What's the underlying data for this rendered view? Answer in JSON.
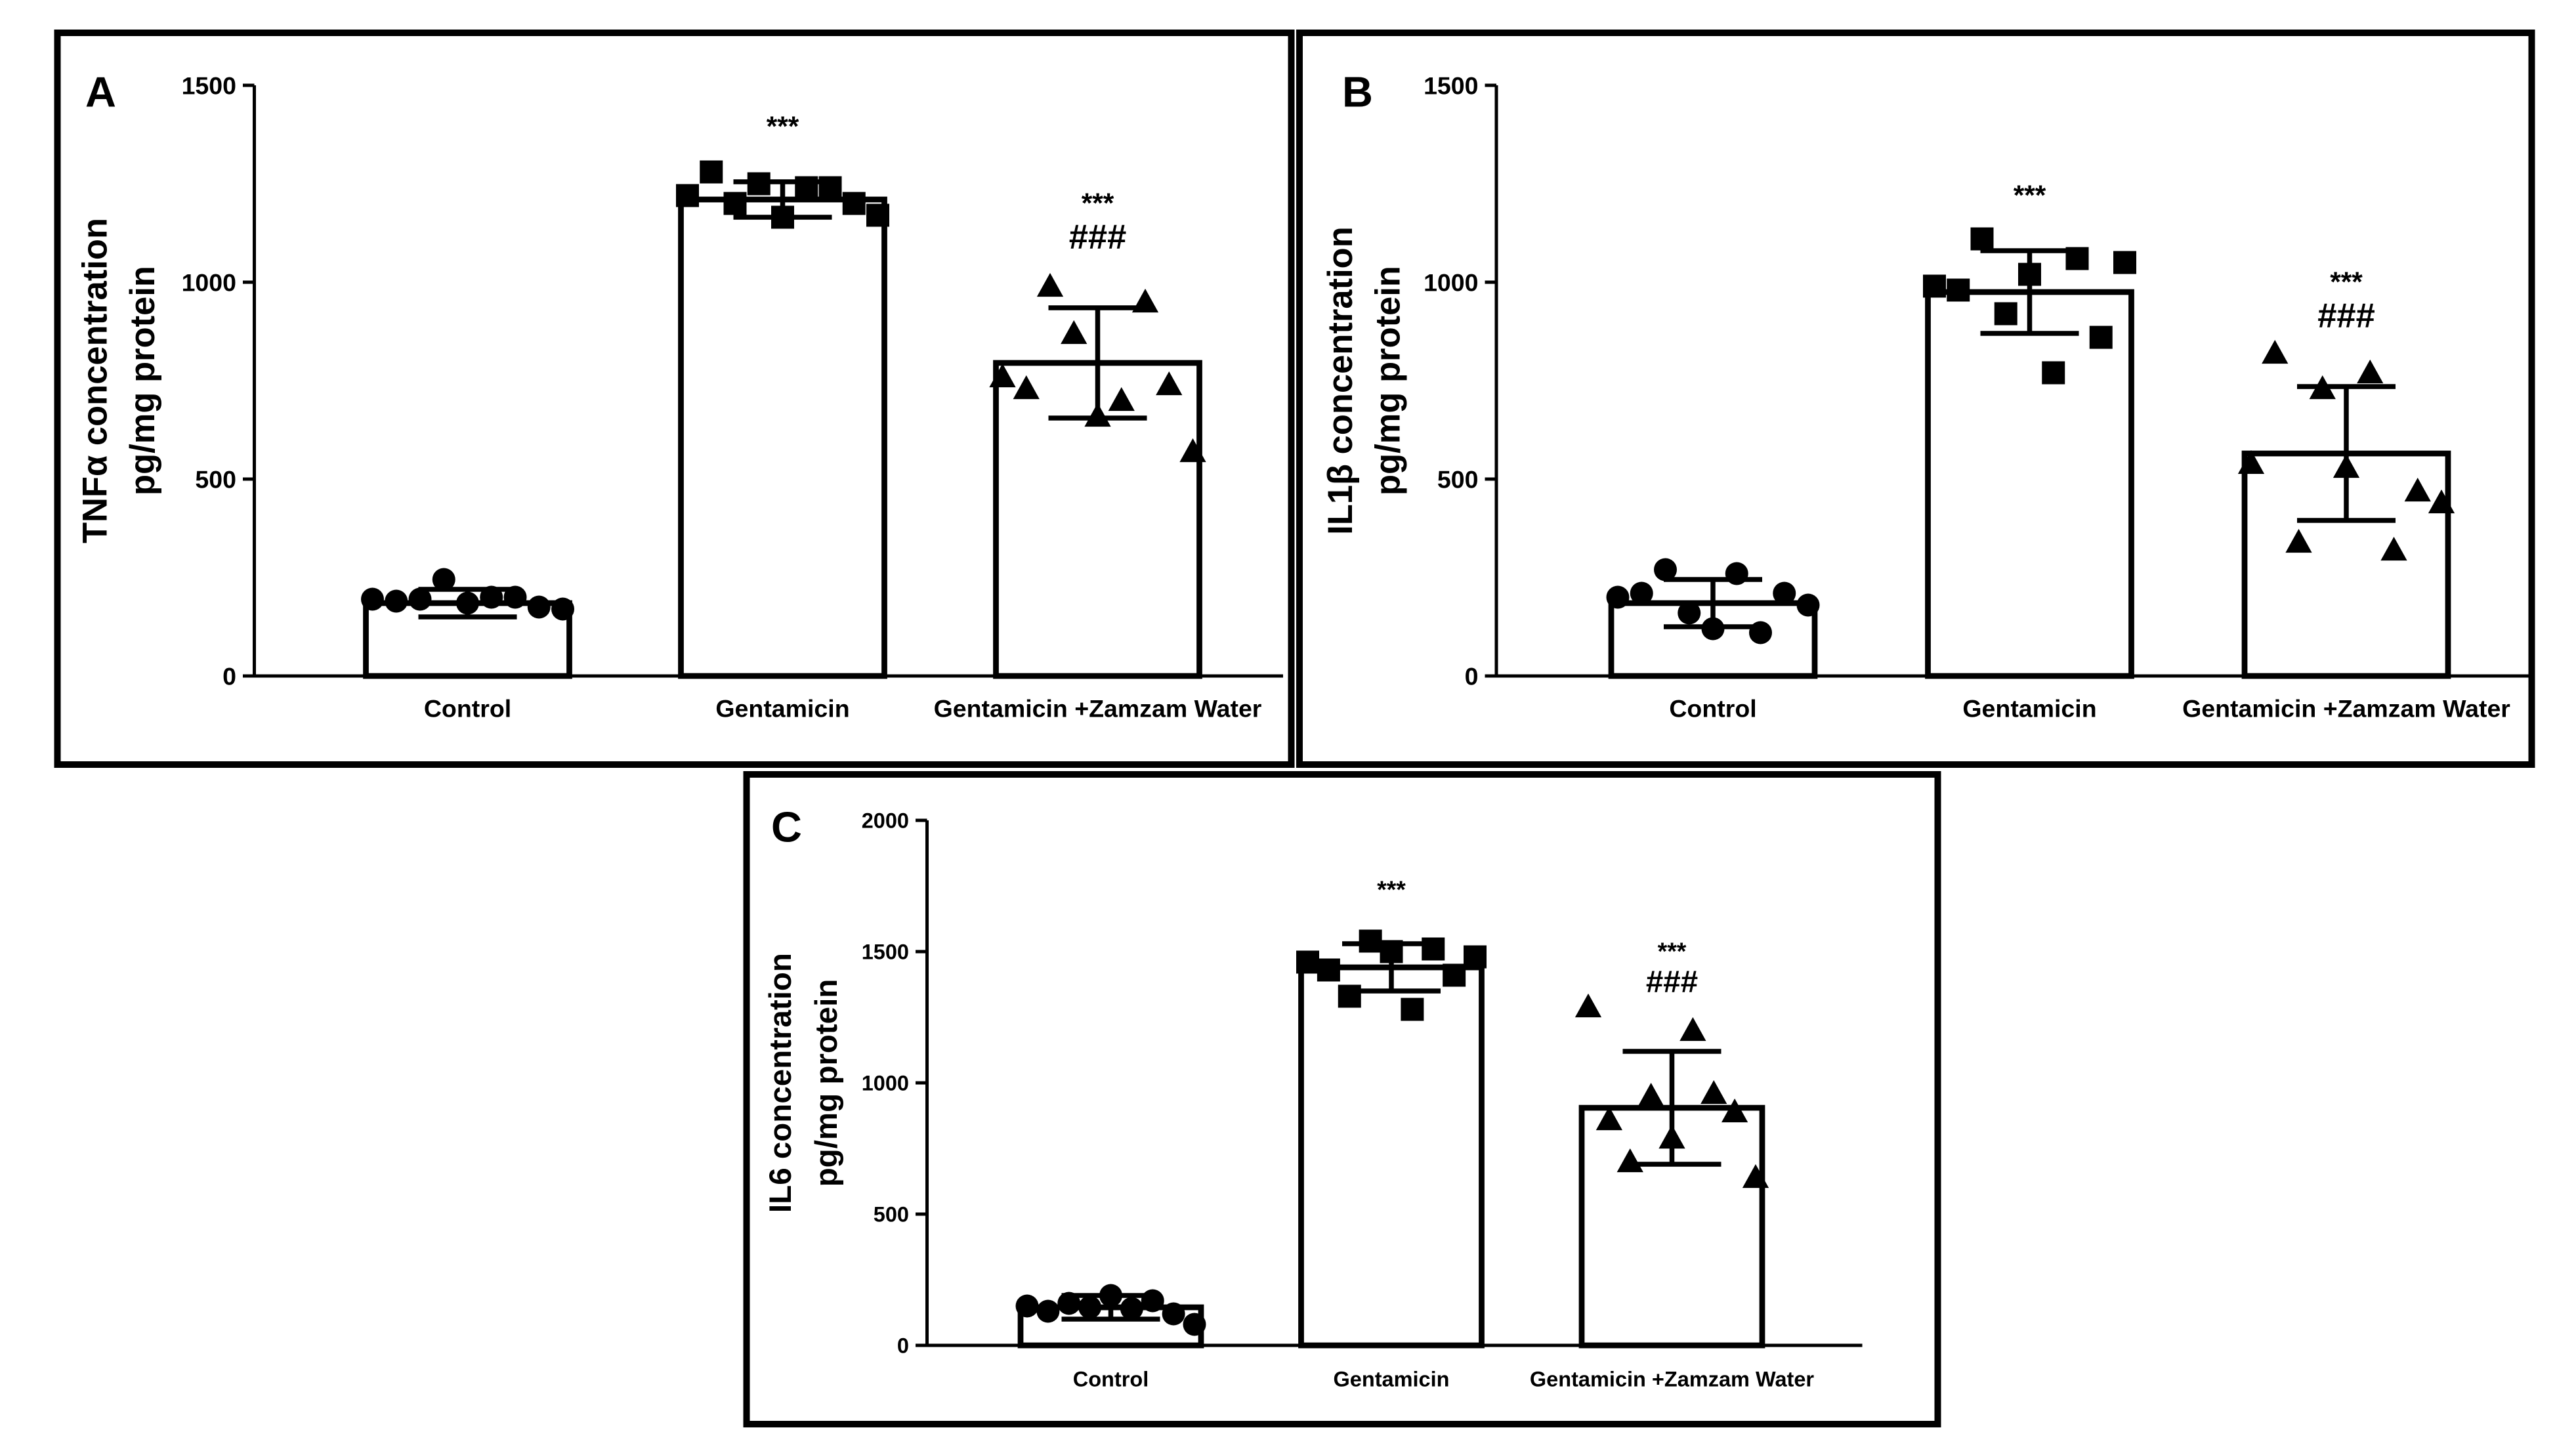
{
  "chart_data": [
    {
      "panel": "A",
      "type": "bar",
      "ylabel": [
        "TNFα concentration",
        "pg/mg protein"
      ],
      "ylim": [
        0,
        1500
      ],
      "yticks": [
        0,
        500,
        1000,
        1500
      ],
      "categories": [
        "Control",
        "Gentamicin",
        "Gentamicin +Zamzam Water"
      ],
      "markers": [
        "circle",
        "square",
        "triangle"
      ],
      "values": [
        185,
        1210,
        795
      ],
      "sd": [
        35,
        45,
        140
      ],
      "points": [
        [
          195,
          190,
          195,
          245,
          185,
          200,
          200,
          175,
          170
        ],
        [
          1220,
          1280,
          1200,
          1250,
          1165,
          1240,
          1240,
          1200,
          1170
        ],
        [
          760,
          730,
          990,
          870,
          660,
          700,
          950,
          740,
          570
        ]
      ],
      "significance": [
        "",
        "***",
        "***\n###"
      ]
    },
    {
      "panel": "B",
      "type": "bar",
      "ylabel": [
        "IL1β concentration",
        "pg/mg protein"
      ],
      "ylim": [
        0,
        1500
      ],
      "yticks": [
        0,
        500,
        1000,
        1500
      ],
      "categories": [
        "Control",
        "Gentamicin",
        "Gentamicin +Zamzam Water"
      ],
      "markers": [
        "circle",
        "square",
        "triangle"
      ],
      "values": [
        185,
        975,
        565
      ],
      "sd": [
        60,
        105,
        170
      ],
      "points": [
        [
          200,
          210,
          270,
          160,
          120,
          260,
          110,
          210,
          180
        ],
        [
          990,
          980,
          1110,
          920,
          1020,
          770,
          1060,
          860,
          1050
        ],
        [
          540,
          820,
          340,
          730,
          530,
          770,
          320,
          470,
          440
        ]
      ],
      "significance": [
        "",
        "***",
        "***\n###"
      ]
    },
    {
      "panel": "C",
      "type": "bar",
      "ylabel": [
        "IL6 concentration",
        "pg/mg protein"
      ],
      "ylim": [
        0,
        2000
      ],
      "yticks": [
        0,
        500,
        1000,
        1500,
        2000
      ],
      "categories": [
        "Control",
        "Gentamicin",
        "Gentamicin +Zamzam Water"
      ],
      "markers": [
        "circle",
        "square",
        "triangle"
      ],
      "values": [
        145,
        1440,
        905
      ],
      "sd": [
        45,
        90,
        215
      ],
      "points": [
        [
          150,
          130,
          160,
          145,
          190,
          140,
          170,
          120,
          80
        ],
        [
          1460,
          1430,
          1330,
          1540,
          1500,
          1280,
          1510,
          1410,
          1480
        ],
        [
          1290,
          860,
          700,
          950,
          790,
          1200,
          960,
          890,
          640
        ]
      ],
      "significance": [
        "",
        "***",
        "***\n###"
      ]
    }
  ]
}
